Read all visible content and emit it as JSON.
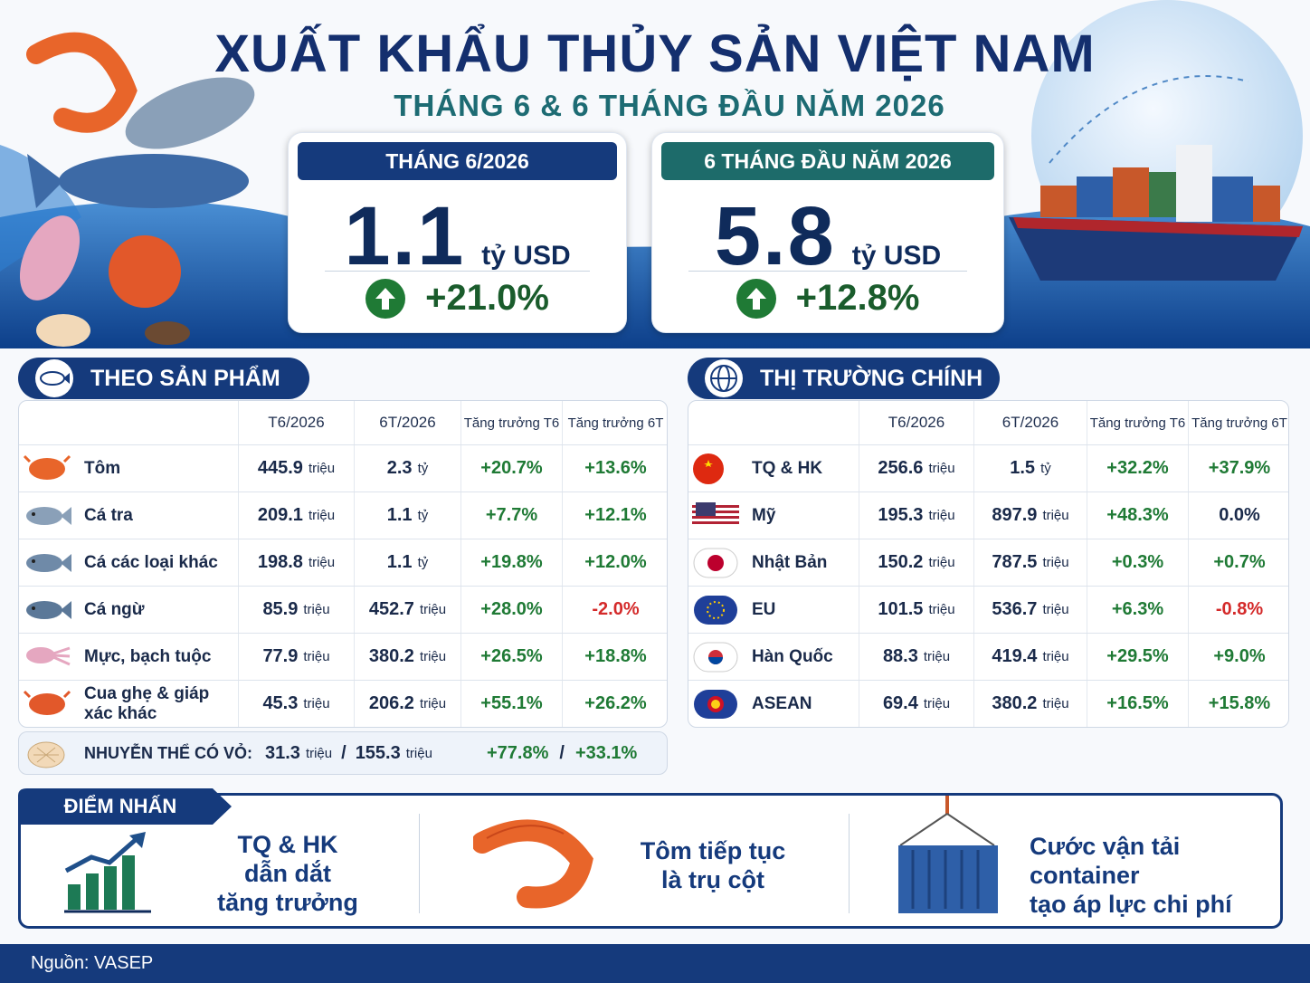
{
  "header": {
    "title": "XUẤT KHẨU THỦY SẢN VIỆT NAM",
    "subtitle": "THÁNG 6 & 6 THÁNG ĐẦU NĂM 2026"
  },
  "kpis": [
    {
      "label": "THÁNG 6/2026",
      "value": "1.1",
      "unit": "tỷ USD",
      "growth": "+21.0%"
    },
    {
      "label": "6 THÁNG ĐẦU NĂM 2026",
      "value": "5.8",
      "unit": "tỷ USD",
      "growth": "+12.8%"
    }
  ],
  "products": {
    "title": "THEO SẢN PHẨM",
    "columns": [
      "T6/2026",
      "6T/2026",
      "Tăng trưởng T6",
      "Tăng trưởng 6T"
    ],
    "rows": [
      {
        "name": "Tôm",
        "t6": [
          "445.9",
          "triệu"
        ],
        "ytd": [
          "2.3",
          "tỷ"
        ],
        "g6": "+20.7%",
        "gytd": "+13.6%"
      },
      {
        "name": "Cá tra",
        "t6": [
          "209.1",
          "triệu"
        ],
        "ytd": [
          "1.1",
          "tỷ"
        ],
        "g6": "+7.7%",
        "gytd": "+12.1%"
      },
      {
        "name": "Cá các loại khác",
        "t6": [
          "198.8",
          "triệu"
        ],
        "ytd": [
          "1.1",
          "tỷ"
        ],
        "g6": "+19.8%",
        "gytd": "+12.0%"
      },
      {
        "name": "Cá ngừ",
        "t6": [
          "85.9",
          "triệu"
        ],
        "ytd": [
          "452.7",
          "triệu"
        ],
        "g6": "+28.0%",
        "gytd": "-2.0%"
      },
      {
        "name": "Mực, bạch tuộc",
        "t6": [
          "77.9",
          "triệu"
        ],
        "ytd": [
          "380.2",
          "triệu"
        ],
        "g6": "+26.5%",
        "gytd": "+18.8%"
      },
      {
        "name": "Cua ghẹ & giáp xác khác",
        "t6": [
          "45.3",
          "triệu"
        ],
        "ytd": [
          "206.2",
          "triệu"
        ],
        "g6": "+55.1%",
        "gytd": "+26.2%"
      }
    ],
    "extra": {
      "label": "NHUYỄN THỂ CÓ VỎ:",
      "t6": [
        "31.3",
        "triệu"
      ],
      "sep": "/",
      "ytd": [
        "155.3",
        "triệu"
      ],
      "g6": "+77.8%",
      "gytd": "+33.1%"
    }
  },
  "markets": {
    "title": "THỊ TRƯỜNG CHÍNH",
    "columns": [
      "T6/2026",
      "6T/2026",
      "Tăng trưởng T6",
      "Tăng trưởng 6T"
    ],
    "rows": [
      {
        "name": "TQ & HK",
        "t6": [
          "256.6",
          "triệu"
        ],
        "ytd": [
          "1.5",
          "tỷ"
        ],
        "g6": "+32.2%",
        "gytd": "+37.9%"
      },
      {
        "name": "Mỹ",
        "t6": [
          "195.3",
          "triệu"
        ],
        "ytd": [
          "897.9",
          "triệu"
        ],
        "g6": "+48.3%",
        "gytd": "0.0%"
      },
      {
        "name": "Nhật Bản",
        "t6": [
          "150.2",
          "triệu"
        ],
        "ytd": [
          "787.5",
          "triệu"
        ],
        "g6": "+0.3%",
        "gytd": "+0.7%"
      },
      {
        "name": "EU",
        "t6": [
          "101.5",
          "triệu"
        ],
        "ytd": [
          "536.7",
          "triệu"
        ],
        "g6": "+6.3%",
        "gytd": "-0.8%"
      },
      {
        "name": "Hàn Quốc",
        "t6": [
          "88.3",
          "triệu"
        ],
        "ytd": [
          "419.4",
          "triệu"
        ],
        "g6": "+29.5%",
        "gytd": "+9.0%"
      },
      {
        "name": "ASEAN",
        "t6": [
          "69.4",
          "triệu"
        ],
        "ytd": [
          "380.2",
          "triệu"
        ],
        "g6": "+16.5%",
        "gytd": "+15.8%"
      }
    ]
  },
  "highlights": {
    "title": "ĐIỂM NHẤN",
    "items": [
      [
        "TQ & HK",
        "dẫn dắt",
        "tăng trưởng"
      ],
      [
        "Tôm tiếp tục",
        "là trụ cột"
      ],
      [
        "Cước vận tải container",
        "tạo áp lực chi phí"
      ]
    ]
  },
  "source": "Nguồn: VASEP"
}
